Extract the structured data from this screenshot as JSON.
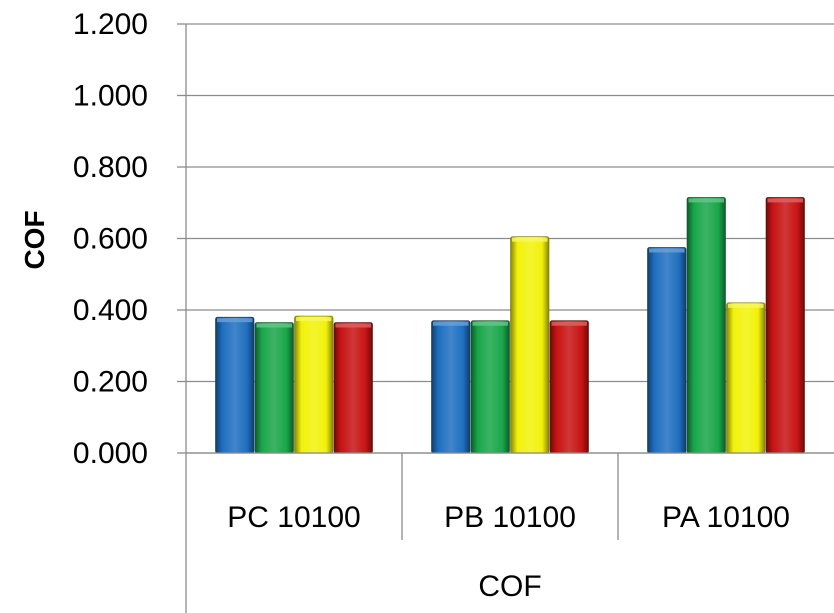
{
  "chart_data": {
    "type": "bar",
    "categories": [
      "PC 10100",
      "PB 10100",
      "PA 10100"
    ],
    "series": [
      {
        "values": [
          0.38,
          0.37,
          0.575
        ],
        "color": "#1f6fc0"
      },
      {
        "values": [
          0.365,
          0.37,
          0.715
        ],
        "color": "#1aa64a"
      },
      {
        "values": [
          0.383,
          0.605,
          0.42
        ],
        "color": "#f2f20a"
      },
      {
        "values": [
          0.365,
          0.37,
          0.715
        ],
        "color": "#c81414"
      }
    ],
    "xlabel": "COF",
    "ylabel": "COF",
    "ylim": [
      0,
      1.2
    ],
    "yticks": [
      "0.000",
      "0.200",
      "0.400",
      "0.600",
      "0.800",
      "1.000",
      "1.200"
    ],
    "grid": true
  }
}
